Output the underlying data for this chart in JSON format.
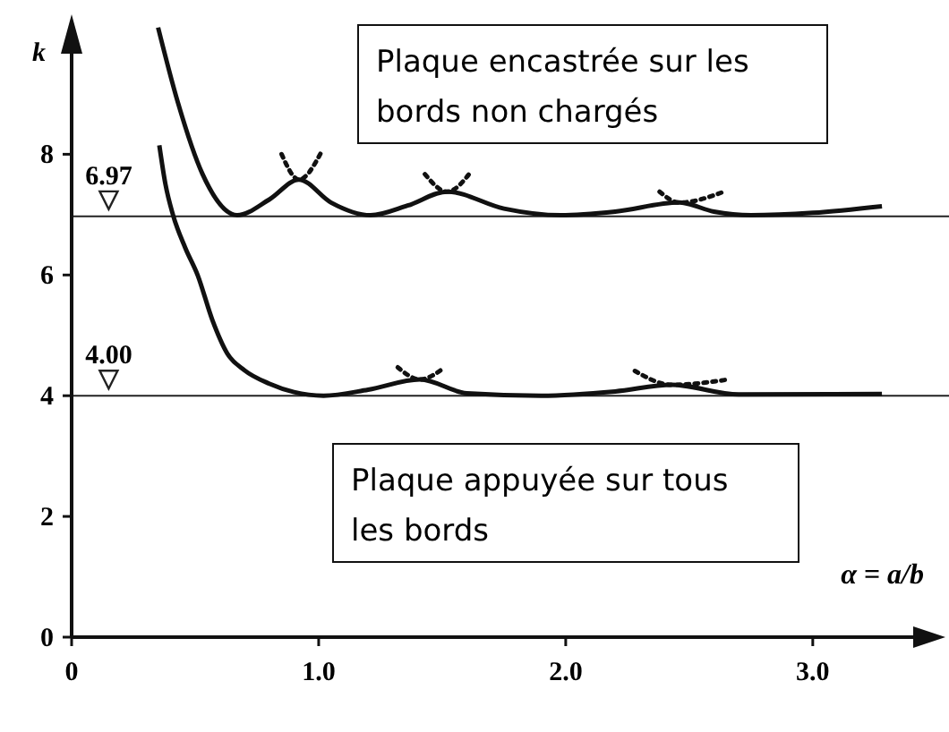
{
  "chart_data": {
    "type": "line",
    "xlabel": "α = a/b",
    "ylabel": "k",
    "xlim": [
      0,
      3.45
    ],
    "ylim": [
      0,
      10.2
    ],
    "xticks": [
      0,
      {
        "value": 1,
        "label": "1.0"
      },
      {
        "value": 2,
        "label": "2.0"
      },
      {
        "value": 3,
        "label": "3.0"
      }
    ],
    "yticks": [
      0,
      2,
      4,
      6,
      8
    ],
    "grid": false,
    "series": [
      {
        "color": "#111111",
        "line_style": "solid",
        "x": [
          0.35,
          0.43,
          0.53,
          0.67,
          0.8,
          0.92,
          1.05,
          1.21,
          1.36,
          1.52,
          1.75,
          1.98,
          2.2,
          2.46,
          2.6,
          2.75,
          3.0,
          3.28
        ],
        "values": [
          10.1,
          8.86,
          7.67,
          6.99,
          7.25,
          7.58,
          7.2,
          6.99,
          7.15,
          7.38,
          7.1,
          6.99,
          7.05,
          7.2,
          7.05,
          6.99,
          7.03,
          7.14
        ]
      },
      {
        "color": "#111111",
        "line_style": "solid",
        "x": [
          0.355,
          0.38,
          0.41,
          0.46,
          0.51,
          0.57,
          0.63,
          0.7,
          0.8,
          0.9,
          1.02,
          1.2,
          1.41,
          1.6,
          1.9,
          2.2,
          2.43,
          2.7,
          3.28
        ],
        "values": [
          8.15,
          7.5,
          7.0,
          6.45,
          6.0,
          5.25,
          4.7,
          4.42,
          4.2,
          4.06,
          4.0,
          4.1,
          4.27,
          4.04,
          4.0,
          4.07,
          4.18,
          4.02,
          4.03
        ]
      },
      {
        "color": "#111111",
        "line_style": "dotted",
        "x": [
          0.85,
          0.92,
          1.01
        ],
        "values": [
          8.0,
          7.58,
          8.03
        ]
      },
      {
        "color": "#111111",
        "line_style": "dotted",
        "x": [
          1.43,
          1.52,
          1.62
        ],
        "values": [
          7.67,
          7.38,
          7.73
        ]
      },
      {
        "color": "#111111",
        "line_style": "dotted",
        "x": [
          2.38,
          2.46,
          2.64
        ],
        "values": [
          7.38,
          7.2,
          7.38
        ]
      },
      {
        "color": "#111111",
        "line_style": "dotted",
        "x": [
          1.32,
          1.41,
          1.51
        ],
        "values": [
          4.47,
          4.27,
          4.47
        ]
      },
      {
        "color": "#111111",
        "line_style": "dotted",
        "x": [
          2.28,
          2.43,
          2.66
        ],
        "values": [
          4.41,
          4.18,
          4.27
        ]
      }
    ],
    "ref_lines": [
      {
        "axis": "y",
        "value": 6.97,
        "label": "6.97"
      },
      {
        "axis": "y",
        "value": 4.0,
        "label": "4.00"
      }
    ],
    "annotations": [
      "Plaque encastrée sur les bords non chargés",
      "Plaque appuyée sur tous les bords"
    ]
  }
}
